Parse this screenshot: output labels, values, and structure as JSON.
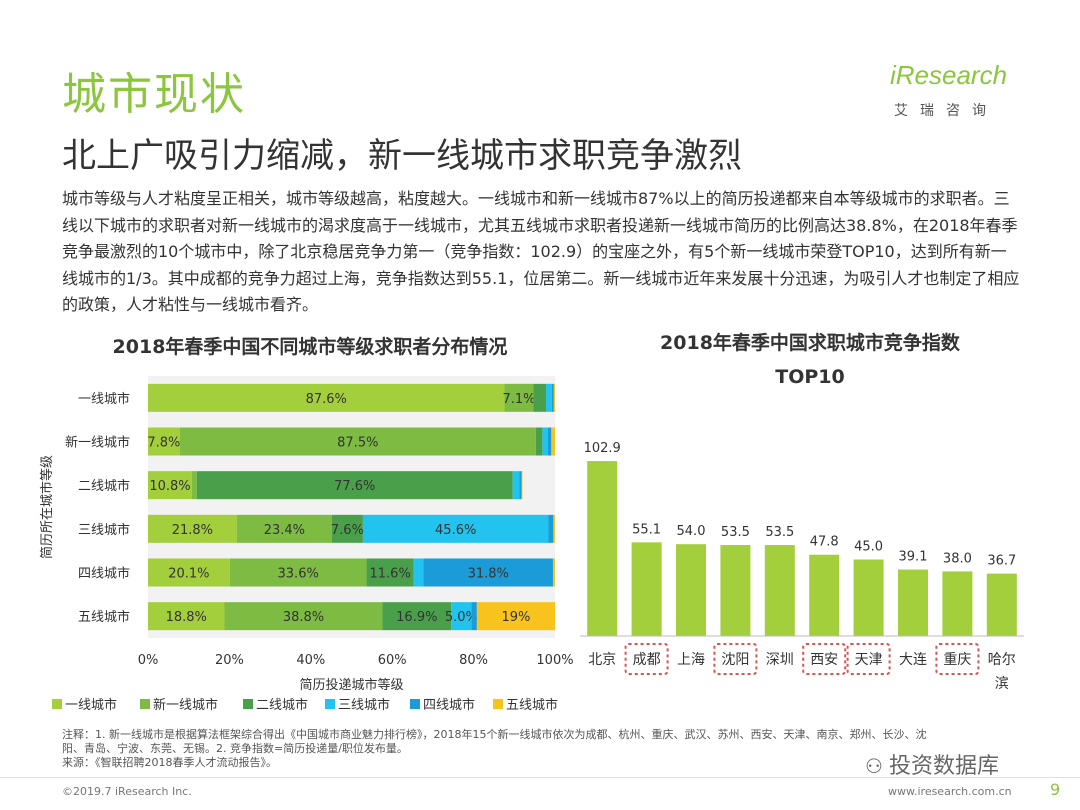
{
  "header": {
    "title": "城市现状",
    "subtitle": "北上广吸引力缩减，新一线城市求职竞争激烈",
    "logo_text": "iResearch",
    "logo_sub": "艾瑞咨询"
  },
  "body_text": "城市等级与人才粘度呈正相关，城市等级越高，粘度越大。一线城市和新一线城市87%以上的简历投递都来自本等级城市的求职者。三线以下城市的求职者对新一线城市的渴求度高于一线城市，尤其五线城市求职者投递新一线城市简历的比例高达38.8%，在2018年春季竞争最激烈的10个城市中，除了北京稳居竞争力第一（竞争指数：102.9）的宝座之外，有5个新一线城市荣登TOP10，达到所有新一线城市的1/3。其中成都的竞争力超过上海，竞争指数达到55.1，位居第二。新一线城市近年来发展十分迅速，为吸引人才也制定了相应的政策，人才粘性与一线城市看齐。",
  "chart_data": [
    {
      "type": "bar",
      "orientation": "horizontal-stacked-100",
      "title": "2018年春季中国不同城市等级求职者分布情况",
      "xlabel": "简历投递城市等级",
      "ylabel": "简历所在城市等级",
      "x_ticks": [
        "0%",
        "20%",
        "40%",
        "60%",
        "80%",
        "100%"
      ],
      "categories": [
        "一线城市",
        "新一线城市",
        "二线城市",
        "三线城市",
        "四线城市",
        "五线城市"
      ],
      "series": [
        {
          "name": "一线城市",
          "color": "#a4cf3c",
          "values": [
            87.6,
            7.8,
            10.8,
            21.8,
            20.1,
            18.8
          ],
          "labels": [
            "87.6%",
            "7.8%",
            "10.8%",
            "21.8%",
            "20.1%",
            "18.8%"
          ]
        },
        {
          "name": "新一线城市",
          "color": "#7dbb42",
          "values": [
            7.1,
            87.5,
            1.2,
            23.4,
            33.6,
            38.8
          ],
          "labels": [
            "7.1%",
            "87.5%",
            "",
            "23.4%",
            "33.6%",
            "38.8%"
          ]
        },
        {
          "name": "二线城市",
          "color": "#4aa04a",
          "values": [
            3.1,
            1.6,
            77.6,
            7.6,
            11.6,
            16.9
          ],
          "labels": [
            "",
            "",
            "77.6%",
            "7.6%",
            "11.6%",
            "16.9%"
          ]
        },
        {
          "name": "三线城市",
          "color": "#22c3ee",
          "values": [
            1.4,
            1.3,
            1.6,
            45.6,
            2.4,
            5.0
          ],
          "labels": [
            "",
            "",
            "",
            "45.6%",
            "",
            "5.0%"
          ]
        },
        {
          "name": "四线城市",
          "color": "#1b9bd7",
          "values": [
            0.5,
            0.9,
            0.6,
            1.2,
            31.8,
            1.3
          ],
          "labels": [
            "",
            "",
            "",
            "",
            "31.8%",
            ""
          ]
        },
        {
          "name": "五线城市",
          "color": "#f7c31c",
          "values": [
            0.3,
            0.9,
            0.2,
            0.4,
            0.5,
            19.2
          ],
          "labels": [
            "",
            "",
            "",
            "",
            "",
            "19%"
          ]
        }
      ],
      "legend": "bottom",
      "colors": {
        "plot_bg": "#f2f2f2"
      }
    },
    {
      "type": "bar",
      "title": "2018年春季中国求职城市竞争指数TOP10",
      "title_lines": [
        "2018年春季中国求职城市竞争指数",
        "TOP10"
      ],
      "categories": [
        "北京",
        "成都",
        "上海",
        "沈阳",
        "深圳",
        "西安",
        "天津",
        "大连",
        "重庆",
        "哈尔滨"
      ],
      "category_lines": [
        [
          "北京"
        ],
        [
          "成都"
        ],
        [
          "上海"
        ],
        [
          "沈阳"
        ],
        [
          "深圳"
        ],
        [
          "西安"
        ],
        [
          "天津"
        ],
        [
          "大连"
        ],
        [
          "重庆"
        ],
        [
          "哈尔",
          "滨"
        ]
      ],
      "values": [
        102.9,
        55.1,
        54.0,
        53.5,
        53.5,
        47.8,
        45.0,
        39.1,
        38.0,
        36.7
      ],
      "value_labels": [
        "102.9",
        "55.1",
        "54.0",
        "53.5",
        "53.5",
        "47.8",
        "45.0",
        "39.1",
        "38.0",
        "36.7"
      ],
      "highlighted": [
        "成都",
        "沈阳",
        "西安",
        "天津",
        "重庆"
      ],
      "color": "#a4cf3c",
      "highlight_color": "#d9534f"
    }
  ],
  "footnote": {
    "line1": "注释：1. 新一线城市是根据算法框架综合得出《中国城市商业魅力排行榜》，2018年15个新一线城市依次为成都、杭州、重庆、武汉、苏州、西安、天津、南京、郑州、长沙、沈",
    "line2": "阳、青岛、宁波、东莞、无锡。2. 竞争指数=简历投递量/职位发布量。",
    "line3": "来源：《智联招聘2018春季人才流动报告》。"
  },
  "footer": {
    "copyright": "©2019.7 iResearch Inc.",
    "website": "www.iresearch.com.cn",
    "page": "9",
    "watermark": "投资数据库"
  }
}
